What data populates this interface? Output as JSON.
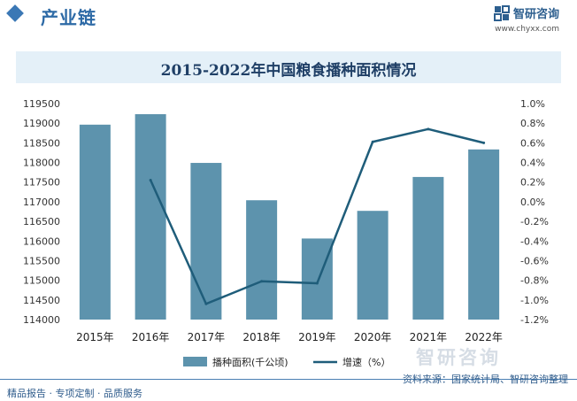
{
  "header": {
    "section_title": "产业链",
    "brand_name": "智研咨询",
    "brand_url": "www.chyxx.com"
  },
  "watermark": "智研咨询",
  "footer": {
    "left": "精品报告 · 专项定制 · 品质服务",
    "source": "资料来源：国家统计局、智研咨询整理"
  },
  "colors": {
    "bar": "#5d93ad",
    "line": "#1f5d7a",
    "accent": "#2d6aa6"
  },
  "chart_data": {
    "type": "bar",
    "title": "2015-2022年中国粮食播种面积情况",
    "categories": [
      "2015年",
      "2016年",
      "2017年",
      "2018年",
      "2019年",
      "2020年",
      "2021年",
      "2022年"
    ],
    "series": [
      {
        "name": "播种面积(千公顷)",
        "type": "bar",
        "axis": "left",
        "values": [
          118963,
          119230,
          117989,
          117038,
          116064,
          116768,
          117631,
          118332
        ]
      },
      {
        "name": "增速（%）",
        "type": "line",
        "axis": "right",
        "values": [
          null,
          0.22,
          -1.04,
          -0.81,
          -0.83,
          0.61,
          0.74,
          0.6
        ]
      }
    ],
    "y_left": {
      "min": 114000,
      "max": 119500,
      "ticks": [
        114000,
        114500,
        115000,
        115500,
        116000,
        116500,
        117000,
        117500,
        118000,
        118500,
        119000,
        119500
      ]
    },
    "y_right": {
      "min": -1.2,
      "max": 1.0,
      "ticks": [
        "-1.2%",
        "-1.0%",
        "-0.8%",
        "-0.6%",
        "-0.4%",
        "-0.2%",
        "0.0%",
        "0.2%",
        "0.4%",
        "0.6%",
        "0.8%",
        "1.0%"
      ]
    },
    "legend": {
      "position": "bottom",
      "bar_label": "播种面积(千公顷)",
      "line_label": "增速（%）"
    },
    "grid": false
  }
}
